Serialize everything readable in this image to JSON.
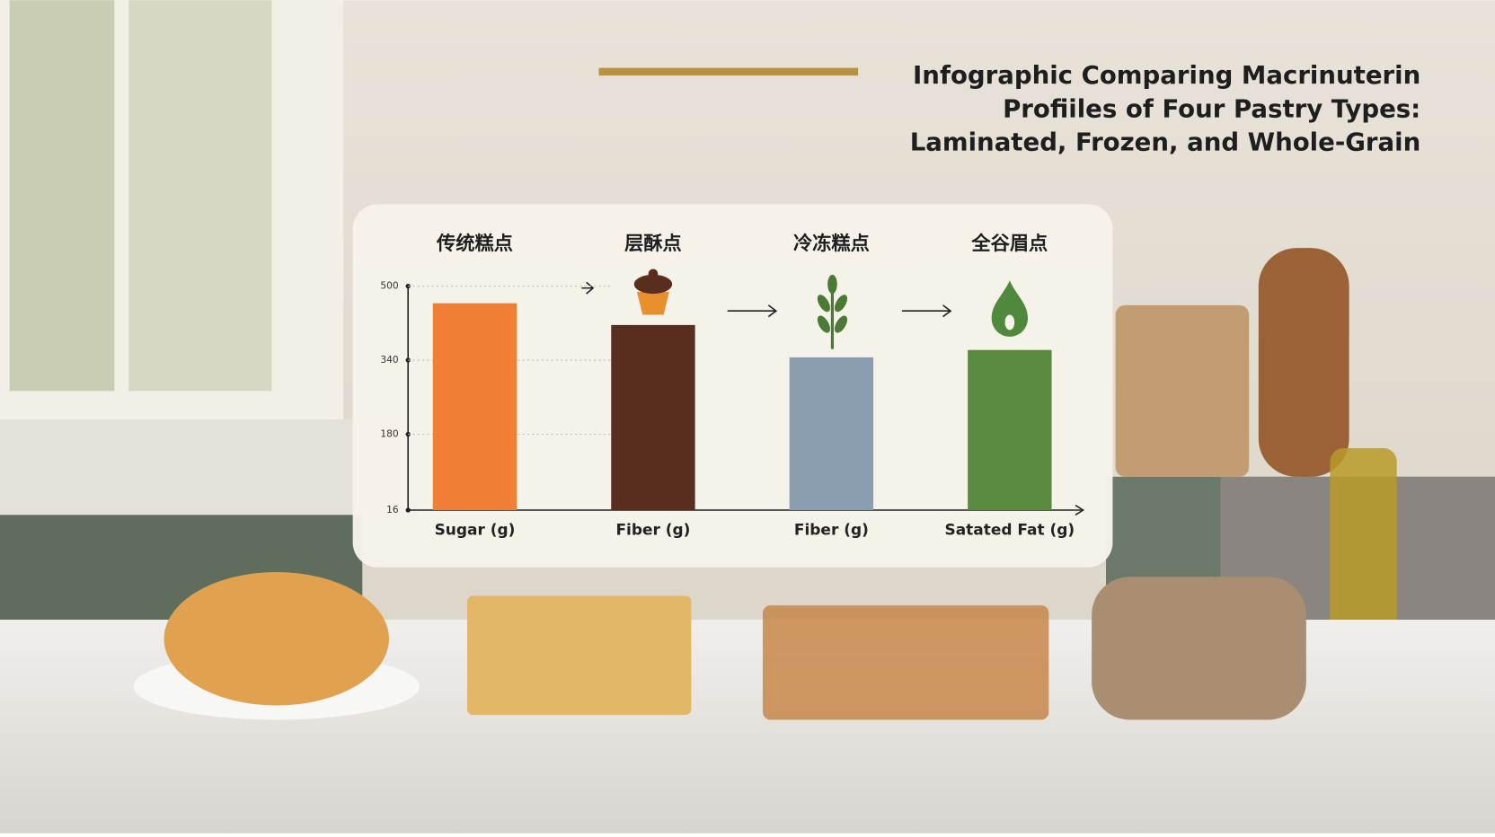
{
  "chart_data": {
    "type": "bar",
    "title": [
      "Infographic Comparing Macrinuterin",
      "Profiiles of Four Pastry Types:",
      "Laminated, Frozen, and Whole-Grain"
    ],
    "group_labels": [
      "传统糕点",
      "层酥点",
      "冷冻糕点",
      "全谷眉点"
    ],
    "categories": [
      "Sugar (g)",
      "Fiber (g)",
      "Fiber (g)",
      "Satated Fat (g)"
    ],
    "values": [
      463,
      416,
      346,
      362
    ],
    "colors": [
      "#f07f35",
      "#5a2e1f",
      "#8a9eaf",
      "#5a8a40"
    ],
    "ylim": [
      16,
      500
    ],
    "yticks": [
      16,
      180,
      340,
      500
    ],
    "grid": true
  }
}
